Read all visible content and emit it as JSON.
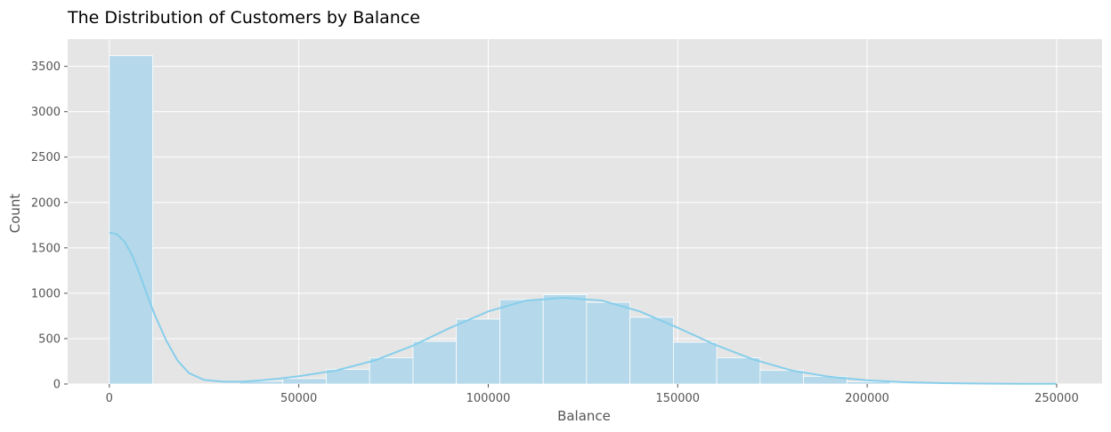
{
  "chart_data": {
    "type": "bar",
    "title": "The Distribution of Customers by Balance",
    "xlabel": "Balance",
    "ylabel": "Count",
    "xlim": [
      -11000,
      262000
    ],
    "ylim": [
      0,
      3800
    ],
    "xticks": [
      0,
      50000,
      100000,
      150000,
      200000,
      250000
    ],
    "yticks": [
      0,
      500,
      1000,
      1500,
      2000,
      2500,
      3000,
      3500
    ],
    "grid": true,
    "bin_edges": [
      0,
      11450,
      22900,
      34350,
      45800,
      57250,
      68700,
      80150,
      91600,
      103050,
      114500,
      125950,
      137400,
      148850,
      160300,
      171750,
      183200,
      194650,
      206100,
      217550,
      229000,
      240450,
      251900
    ],
    "counts": [
      3617,
      0,
      0,
      30,
      60,
      160,
      290,
      470,
      715,
      930,
      985,
      900,
      735,
      460,
      290,
      150,
      85,
      25,
      10,
      5,
      3,
      2
    ],
    "kde": {
      "x": [
        0,
        2000,
        4000,
        6000,
        8000,
        10000,
        12000,
        15000,
        18000,
        21000,
        25000,
        30000,
        35000,
        40000,
        45000,
        50000,
        60000,
        70000,
        80000,
        90000,
        100000,
        110000,
        120000,
        130000,
        140000,
        150000,
        160000,
        170000,
        180000,
        190000,
        200000,
        210000,
        220000,
        230000,
        240000,
        250000
      ],
      "y": [
        1670,
        1650,
        1570,
        1420,
        1210,
        980,
        760,
        480,
        260,
        120,
        45,
        25,
        25,
        40,
        60,
        85,
        150,
        260,
        420,
        620,
        800,
        920,
        950,
        920,
        800,
        620,
        430,
        270,
        150,
        80,
        40,
        20,
        10,
        5,
        3,
        2
      ]
    },
    "bar_color": "#b5d8ea",
    "line_color": "#87ceeb",
    "background_color": "#e5e5e5",
    "grid_color": "#ffffff"
  }
}
